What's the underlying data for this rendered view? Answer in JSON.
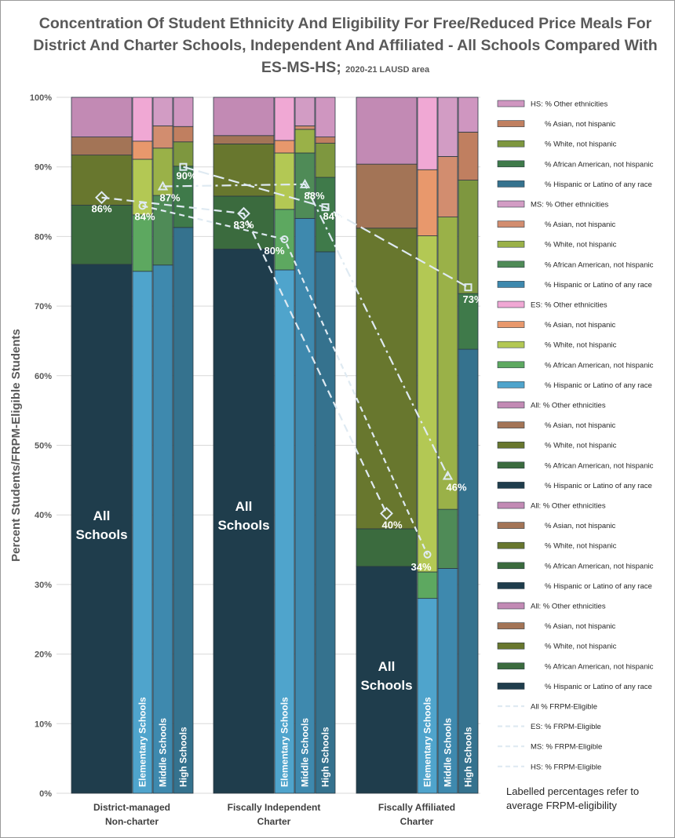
{
  "chart_data": {
    "type": "bar",
    "stacked": true,
    "title": "Concentration Of Student Ethnicity And Eligibility For Free/Reduced Price Meals For District And Charter Schools, Independent And Affiliated - All Schools Compared With ES-MS-HS;",
    "subtitle": "2020-21 LAUSD area",
    "ylabel": "Percent Students/FRPM-Eligible Students",
    "ylim": [
      0,
      100
    ],
    "yticks": [
      "0%",
      "10%",
      "20%",
      "30%",
      "40%",
      "50%",
      "60%",
      "70%",
      "80%",
      "90%",
      "100%"
    ],
    "grid": true,
    "legend_position": "right",
    "categories": [
      "District-managed\nNon-charter",
      "Fiscally Independent\nCharter",
      "Fiscally Affiliated\nCharter"
    ],
    "category_labels": [
      [
        "District-managed",
        "Non-charter"
      ],
      [
        "Fiscally Independent",
        "Charter"
      ],
      [
        "Fiscally Affiliated",
        "Charter"
      ]
    ],
    "bar_text": {
      "all": [
        "All",
        "Schools"
      ],
      "es": "Elementary Schools",
      "ms": "Middle Schools",
      "hs": "High Schools"
    },
    "series_order": [
      "% Hispanic or Latino of any race",
      "% African American, not hispanic",
      "% White, not hispanic",
      "% Asian, not hispanic",
      "Other ethnicities"
    ],
    "groups": [
      {
        "all": [
          76,
          8.5,
          7.2,
          2.6,
          5.7
        ],
        "es": [
          75,
          8.1,
          8.0,
          2.6,
          6.3
        ],
        "ms": [
          75.9,
          10.0,
          6.8,
          3.2,
          4.1
        ],
        "hs": [
          81.3,
          8.8,
          3.5,
          2.2,
          4.2
        ]
      },
      {
        "all": [
          78.2,
          7.6,
          7.5,
          1.2,
          5.5
        ],
        "es": [
          75.2,
          8.7,
          8.1,
          1.8,
          6.2
        ],
        "ms": [
          82.6,
          9.4,
          3.4,
          0.5,
          4.1
        ],
        "hs": [
          77.8,
          10.7,
          4.9,
          0.9,
          5.7
        ]
      },
      {
        "all": [
          32.6,
          5.4,
          43.2,
          9.2,
          9.6
        ],
        "es": [
          28.0,
          3.8,
          48.3,
          9.5,
          10.4
        ],
        "ms": [
          32.3,
          8.5,
          42.0,
          8.7,
          8.5
        ],
        "hs": [
          63.8,
          8.0,
          16.3,
          6.9,
          5.0
        ]
      }
    ],
    "frpm_lines": [
      {
        "name": "All % FRPM-Eligible",
        "bar": "all",
        "values": [
          85.6,
          83.3,
          40.2
        ],
        "labels": [
          "86%",
          "83%",
          "40%"
        ],
        "marker": "diamond"
      },
      {
        "name": "ES: % FRPM-Eligible",
        "bar": "es",
        "values": [
          84.4,
          79.6,
          34.3
        ],
        "labels": [
          "84%",
          "80%",
          "34%"
        ],
        "marker": "circle"
      },
      {
        "name": "MS: % FRPM-Eligible",
        "bar": "ms",
        "values": [
          87.2,
          87.5,
          45.6
        ],
        "labels": [
          "87%",
          "88%",
          "46%"
        ],
        "marker": "triangle"
      },
      {
        "name": "HS: % FRPM-Eligible",
        "bar": "hs",
        "values": [
          90.0,
          84.2,
          72.7
        ],
        "labels": [
          "90%",
          "84%",
          "73%"
        ],
        "marker": "square"
      }
    ],
    "colors": {
      "all": [
        "#1f3d4c",
        "#3b6b3e",
        "#68772e",
        "#a37456",
        "#c28ab4"
      ],
      "es": [
        "#4fa4cc",
        "#5da860",
        "#b3c854",
        "#e8986c",
        "#f0a8d4"
      ],
      "ms": [
        "#3e89ae",
        "#4f8b57",
        "#9ab148",
        "#d28d6f",
        "#d29cc4"
      ],
      "hs": [
        "#35728e",
        "#3f7a4a",
        "#7e973f",
        "#c07f60",
        "#cf96c0"
      ],
      "line": "#dfeaf2"
    },
    "legend": [
      "HS: % Other ethnicities",
      "% Asian, not hispanic",
      "% White, not hispanic",
      "% African American, not hispanic",
      "% Hispanic or Latino of any race",
      "MS: % Other ethnicities",
      "% Asian, not hispanic",
      "% White, not hispanic",
      "% African American, not hispanic",
      "% Hispanic or Latino of any race",
      "ES: % Other ethnicities",
      "% Asian, not hispanic",
      "% White, not hispanic",
      "% African American, not hispanic",
      "% Hispanic or Latino of any race",
      "All: % Other ethnicities",
      "% Asian, not hispanic",
      "% White, not hispanic",
      "% African American, not hispanic",
      "% Hispanic or Latino of any race",
      "All: % Other ethnicities",
      "% Asian, not hispanic",
      "% White, not hispanic",
      "% African American, not hispanic",
      "% Hispanic or Latino of any race",
      "All: % Other ethnicities",
      "% Asian, not hispanic",
      "% White, not hispanic",
      "% African American, not hispanic",
      "% Hispanic or Latino of any race",
      "All % FRPM-Eligible",
      "ES: % FRPM-Eligible",
      "MS: % FRPM-Eligible",
      "HS: % FRPM-Eligible"
    ],
    "legend_swatch_keys": [
      "hs",
      "hs",
      "hs",
      "hs",
      "hs",
      "ms",
      "ms",
      "ms",
      "ms",
      "ms",
      "es",
      "es",
      "es",
      "es",
      "es",
      "all",
      "all",
      "all",
      "all",
      "all",
      "all",
      "all",
      "all",
      "all",
      "all",
      "all",
      "all",
      "all",
      "all",
      "all",
      "line",
      "line",
      "line",
      "line"
    ],
    "note": "Labelled percentages refer to average FRPM-eligibility"
  }
}
